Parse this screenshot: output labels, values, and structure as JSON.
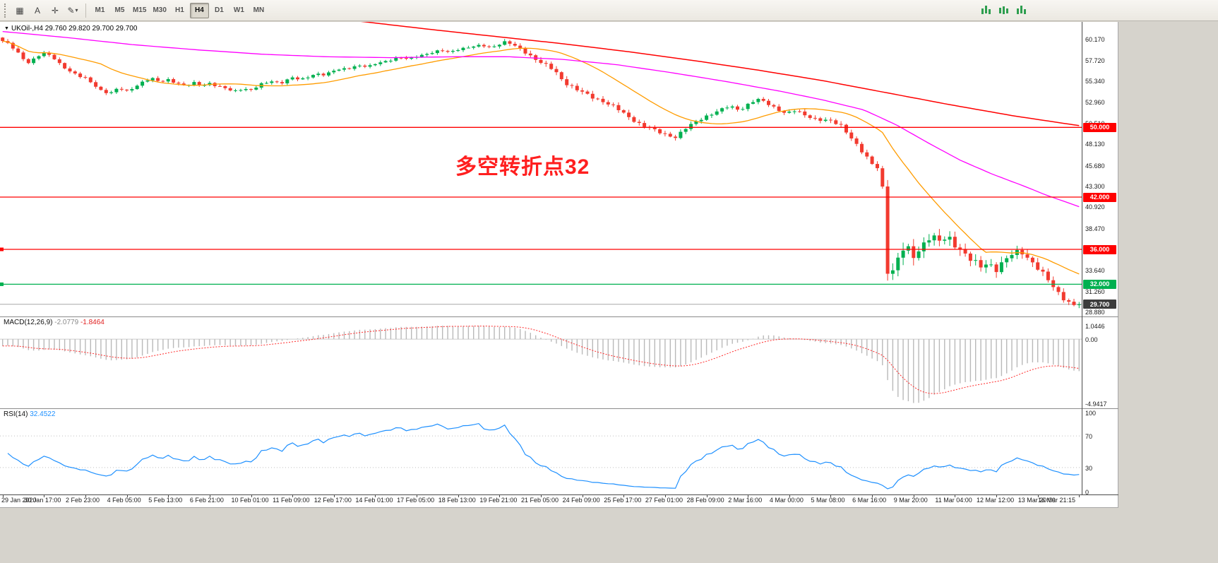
{
  "desktop": {
    "bg": "#d6d3cc"
  },
  "toolbar": {
    "tools_left": [
      {
        "name": "chart-layout-icon",
        "glyph": "▦"
      },
      {
        "name": "text-tool-icon",
        "glyph": "A"
      },
      {
        "name": "crosshair-icon",
        "glyph": "✛"
      },
      {
        "name": "draw-tools-icon",
        "glyph": "✎",
        "dropdown": true
      }
    ],
    "timeframes": [
      {
        "label": "M1",
        "active": false
      },
      {
        "label": "M5",
        "active": false
      },
      {
        "label": "M15",
        "active": false
      },
      {
        "label": "M30",
        "active": false
      },
      {
        "label": "H1",
        "active": false
      },
      {
        "label": "H4",
        "active": true
      },
      {
        "label": "D1",
        "active": false
      },
      {
        "label": "W1",
        "active": false
      },
      {
        "label": "MN",
        "active": false
      }
    ],
    "tools_right": [
      {
        "name": "tick-chart-icon"
      },
      {
        "name": "bar-chart-icon"
      },
      {
        "name": "candle-chart-icon"
      }
    ]
  },
  "chart": {
    "expand_icon": "▼",
    "symbol_tf": "UKOil-,H4",
    "ohlc": "29.760 29.820 29.700 29.700",
    "annotation": {
      "text": "多空转折点32",
      "color": "#ff1f1f"
    }
  },
  "chart_data": {
    "type": "candlestick",
    "symbol": "UKOil-",
    "timeframe": "H4",
    "colors": {
      "up": "#00b050",
      "down": "#f23a2f",
      "ma_fast": "#ff9c00",
      "ma_mid": "#ff00ff",
      "ma_slow": "#ff0000",
      "macd_hist": "#b9b9b9",
      "macd_signal": "#ff2a2a",
      "rsi": "#1e90ff"
    },
    "price_axis": {
      "min": 28.3,
      "max": 62.1,
      "ticks": [
        "60.170",
        "57.720",
        "55.340",
        "52.960",
        "50.510",
        "48.130",
        "45.680",
        "43.300",
        "40.920",
        "38.470",
        "36.090",
        "33.640",
        "31.260",
        "28.880"
      ]
    },
    "hlines": [
      {
        "price": 50.0,
        "label": "50.000",
        "color": "#ff0000",
        "handle": false
      },
      {
        "price": 42.0,
        "label": "42.000",
        "color": "#ff0000",
        "handle": false
      },
      {
        "price": 36.0,
        "label": "36.000",
        "color": "#ff0000",
        "handle": true
      },
      {
        "price": 32.0,
        "label": "32.000",
        "color": "#00b050",
        "handle": true
      }
    ],
    "current_price": {
      "value": 29.7,
      "label": "29.700",
      "line_color": "#a8a8a8",
      "tag_bg": "#3c3c3c"
    },
    "candles": {
      "count": 209,
      "close_path": [
        [
          0.0,
          59.9
        ],
        [
          0.006,
          59.5
        ],
        [
          0.012,
          58.8
        ],
        [
          0.019,
          57.9
        ],
        [
          0.025,
          57.4
        ],
        [
          0.031,
          58.1
        ],
        [
          0.038,
          58.5
        ],
        [
          0.046,
          58.1
        ],
        [
          0.054,
          57.2
        ],
        [
          0.062,
          56.5
        ],
        [
          0.07,
          55.9
        ],
        [
          0.077,
          55.6
        ],
        [
          0.085,
          54.9
        ],
        [
          0.092,
          54.2
        ],
        [
          0.1,
          53.9
        ],
        [
          0.108,
          54.5
        ],
        [
          0.115,
          54.1
        ],
        [
          0.123,
          54.7
        ],
        [
          0.131,
          55.3
        ],
        [
          0.138,
          55.6
        ],
        [
          0.146,
          55.2
        ],
        [
          0.154,
          55.5
        ],
        [
          0.162,
          55.1
        ],
        [
          0.17,
          54.7
        ],
        [
          0.177,
          55.1
        ],
        [
          0.185,
          54.8
        ],
        [
          0.192,
          55.1
        ],
        [
          0.2,
          54.7
        ],
        [
          0.208,
          54.4
        ],
        [
          0.215,
          54.1
        ],
        [
          0.223,
          54.5
        ],
        [
          0.231,
          54.3
        ],
        [
          0.24,
          54.9
        ],
        [
          0.25,
          55.3
        ],
        [
          0.258,
          55.1
        ],
        [
          0.269,
          55.7
        ],
        [
          0.277,
          55.4
        ],
        [
          0.285,
          55.9
        ],
        [
          0.292,
          56.2
        ],
        [
          0.3,
          56.0
        ],
        [
          0.308,
          56.5
        ],
        [
          0.32,
          56.8
        ],
        [
          0.331,
          57.1
        ],
        [
          0.34,
          56.9
        ],
        [
          0.346,
          57.3
        ],
        [
          0.358,
          57.7
        ],
        [
          0.369,
          58.0
        ],
        [
          0.377,
          57.8
        ],
        [
          0.385,
          58.2
        ],
        [
          0.396,
          58.5
        ],
        [
          0.408,
          58.8
        ],
        [
          0.415,
          58.6
        ],
        [
          0.423,
          59.0
        ],
        [
          0.435,
          59.2
        ],
        [
          0.446,
          59.4
        ],
        [
          0.454,
          59.2
        ],
        [
          0.462,
          59.6
        ],
        [
          0.468,
          59.8
        ],
        [
          0.476,
          59.3
        ],
        [
          0.484,
          58.8
        ],
        [
          0.492,
          58.1
        ],
        [
          0.5,
          57.4
        ],
        [
          0.512,
          56.6
        ],
        [
          0.522,
          55.2
        ],
        [
          0.532,
          54.4
        ],
        [
          0.545,
          53.6
        ],
        [
          0.558,
          53.0
        ],
        [
          0.57,
          52.2
        ],
        [
          0.58,
          51.3
        ],
        [
          0.592,
          50.4
        ],
        [
          0.604,
          49.7
        ],
        [
          0.615,
          49.2
        ],
        [
          0.625,
          48.9
        ],
        [
          0.635,
          49.9
        ],
        [
          0.645,
          50.7
        ],
        [
          0.655,
          51.4
        ],
        [
          0.665,
          51.9
        ],
        [
          0.675,
          52.4
        ],
        [
          0.685,
          52.0
        ],
        [
          0.695,
          52.9
        ],
        [
          0.703,
          53.2
        ],
        [
          0.712,
          52.6
        ],
        [
          0.72,
          52.1
        ],
        [
          0.728,
          51.6
        ],
        [
          0.736,
          51.9
        ],
        [
          0.745,
          51.4
        ],
        [
          0.755,
          51.0
        ],
        [
          0.769,
          50.7
        ],
        [
          0.78,
          50.1
        ],
        [
          0.79,
          48.6
        ],
        [
          0.8,
          46.9
        ],
        [
          0.808,
          45.7
        ],
        [
          0.8165,
          45.1
        ],
        [
          0.82,
          36.5
        ],
        [
          0.8235,
          31.9
        ],
        [
          0.827,
          33.6
        ],
        [
          0.831,
          34.6
        ],
        [
          0.838,
          36.3
        ],
        [
          0.846,
          35.2
        ],
        [
          0.854,
          36.5
        ],
        [
          0.862,
          37.6
        ],
        [
          0.87,
          36.8
        ],
        [
          0.878,
          37.4
        ],
        [
          0.885,
          36.6
        ],
        [
          0.893,
          35.6
        ],
        [
          0.9,
          34.7
        ],
        [
          0.908,
          33.9
        ],
        [
          0.915,
          34.5
        ],
        [
          0.923,
          33.8
        ],
        [
          0.93,
          34.6
        ],
        [
          0.938,
          35.4
        ],
        [
          0.946,
          35.8
        ],
        [
          0.954,
          34.9
        ],
        [
          0.962,
          33.8
        ],
        [
          0.97,
          32.6
        ],
        [
          0.977,
          31.5
        ],
        [
          0.984,
          30.6
        ],
        [
          0.99,
          30.0
        ],
        [
          0.995,
          29.6
        ],
        [
          1.0,
          29.7
        ]
      ],
      "volatility_path": [
        [
          0.0,
          0.26
        ],
        [
          0.45,
          0.24
        ],
        [
          0.5,
          0.4
        ],
        [
          0.62,
          0.34
        ],
        [
          0.7,
          0.28
        ],
        [
          0.79,
          0.38
        ],
        [
          0.815,
          0.35
        ],
        [
          0.82,
          0.9
        ],
        [
          0.828,
          1.1
        ],
        [
          0.86,
          0.85
        ],
        [
          0.92,
          0.75
        ],
        [
          0.97,
          0.55
        ],
        [
          1.0,
          0.4
        ]
      ]
    },
    "moving_averages": {
      "fast_sma_period": 20,
      "mid_path": [
        [
          0.0,
          61.0
        ],
        [
          0.06,
          60.3
        ],
        [
          0.12,
          59.5
        ],
        [
          0.18,
          58.9
        ],
        [
          0.24,
          58.4
        ],
        [
          0.3,
          58.1
        ],
        [
          0.36,
          58.0
        ],
        [
          0.42,
          58.1
        ],
        [
          0.47,
          58.1
        ],
        [
          0.52,
          57.8
        ],
        [
          0.57,
          57.2
        ],
        [
          0.62,
          56.3
        ],
        [
          0.67,
          55.3
        ],
        [
          0.72,
          54.2
        ],
        [
          0.76,
          53.2
        ],
        [
          0.8,
          52.0
        ],
        [
          0.83,
          50.3
        ],
        [
          0.86,
          48.2
        ],
        [
          0.89,
          46.2
        ],
        [
          0.92,
          44.6
        ],
        [
          0.95,
          43.2
        ],
        [
          0.97,
          42.2
        ],
        [
          1.0,
          40.9
        ]
      ],
      "slow_path": [
        [
          0.33,
          62.2
        ],
        [
          0.4,
          61.2
        ],
        [
          0.46,
          60.4
        ],
        [
          0.52,
          59.6
        ],
        [
          0.58,
          58.7
        ],
        [
          0.64,
          57.7
        ],
        [
          0.7,
          56.6
        ],
        [
          0.76,
          55.4
        ],
        [
          0.82,
          54.0
        ],
        [
          0.88,
          52.6
        ],
        [
          0.94,
          51.3
        ],
        [
          1.0,
          50.2
        ]
      ]
    },
    "macd": {
      "name": "MACD(12,26,9)",
      "value_main": "-2.0779",
      "value_signal": "-1.8464",
      "max": 1.0446,
      "min": -4.9417,
      "axis": [
        {
          "value": 1.0446,
          "label": "1.0446"
        },
        {
          "value": 0,
          "label": "0.00"
        },
        {
          "value": -4.9417,
          "label": "-4.9417"
        }
      ]
    },
    "rsi": {
      "name": "RSI(14)",
      "value": "32.4522",
      "levels": [
        70,
        30
      ],
      "axis": [
        {
          "value": 100,
          "label": "100"
        },
        {
          "value": 70,
          "label": "70"
        },
        {
          "value": 30,
          "label": "30"
        },
        {
          "value": 0,
          "label": "0"
        }
      ]
    },
    "time_labels": [
      "29 Jan 2020",
      "30 Jan 17:00",
      "2 Feb 23:00",
      "4 Feb 05:00",
      "5 Feb 13:00",
      "6 Feb 21:00",
      "10 Feb 01:00",
      "11 Feb 09:00",
      "12 Feb 17:00",
      "14 Feb 01:00",
      "17 Feb 05:00",
      "18 Feb 13:00",
      "19 Feb 21:00",
      "21 Feb 05:00",
      "24 Feb 09:00",
      "25 Feb 17:00",
      "27 Feb 01:00",
      "28 Feb 09:00",
      "2 Mar 16:00",
      "4 Mar 00:00",
      "5 Mar 08:00",
      "6 Mar 16:00",
      "9 Mar 20:00",
      "11 Mar 04:00",
      "12 Mar 12:00",
      "13 Mar 20:00",
      "16 Mar 21:15"
    ]
  }
}
